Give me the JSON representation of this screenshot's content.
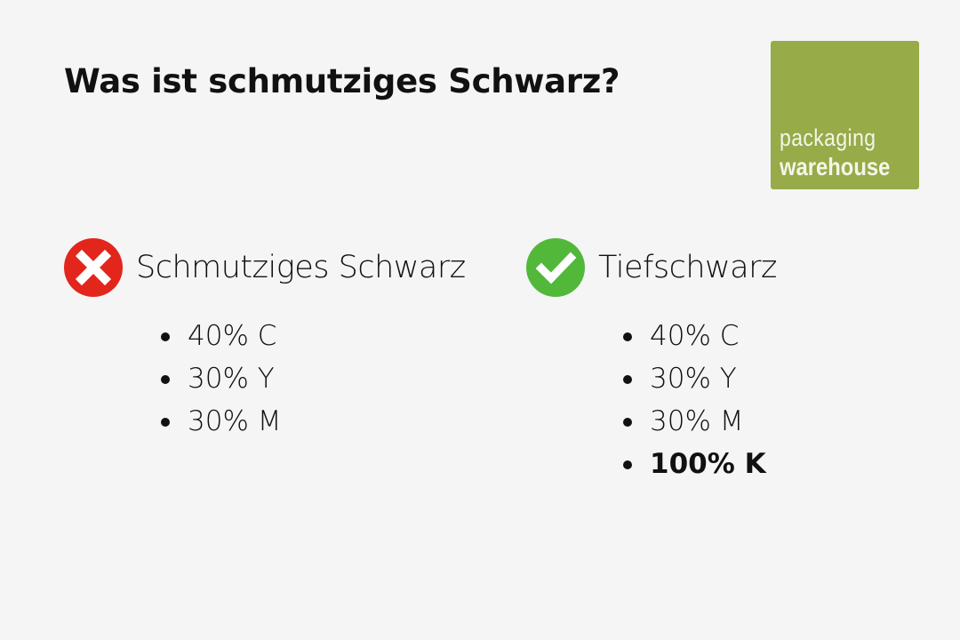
{
  "title": "Was ist schmutziges Schwarz?",
  "logo": {
    "line1": "packaging",
    "line2": "warehouse",
    "color": "#97ab49"
  },
  "columns": [
    {
      "icon": "cross-icon",
      "color": "#e3261b",
      "heading": "Schmutziges Schwarz",
      "items": [
        {
          "text": "40% C",
          "bold": false
        },
        {
          "text": "30% Y",
          "bold": false
        },
        {
          "text": "30% M",
          "bold": false
        }
      ]
    },
    {
      "icon": "check-icon",
      "color": "#52b83a",
      "heading": "Tiefschwarz",
      "items": [
        {
          "text": "40% C",
          "bold": false
        },
        {
          "text": "30% Y",
          "bold": false
        },
        {
          "text": "30% M",
          "bold": false
        },
        {
          "text": "100% K",
          "bold": true
        }
      ]
    }
  ]
}
